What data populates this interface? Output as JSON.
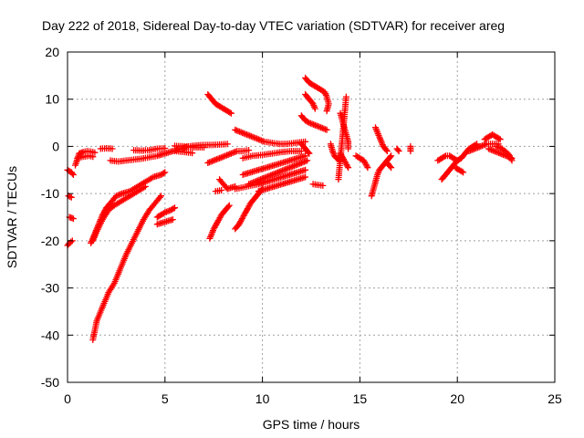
{
  "chart_data": {
    "type": "scatter",
    "title": "Day 222 of 2018, Sidereal Day-to-day VTEC variation (SDTVAR) for receiver areg",
    "xlabel": "GPS time / hours",
    "ylabel": "SDTVAR / TECUs",
    "xlim": [
      0,
      25
    ],
    "ylim": [
      -50,
      20
    ],
    "xticks": [
      0,
      5,
      10,
      15,
      20,
      25
    ],
    "yticks": [
      -50,
      -40,
      -30,
      -20,
      -10,
      0,
      10,
      20
    ],
    "xtick_labels": [
      "0",
      "5",
      "10",
      "15",
      "20",
      "25"
    ],
    "ytick_labels": [
      "-50",
      "-40",
      "-30",
      "-20",
      "-10",
      "0",
      "10",
      "20"
    ],
    "grid": true,
    "marker": "+",
    "color": "#ff0000",
    "tracks": [
      [
        [
          0.0,
          -5.0
        ],
        [
          0.2,
          -5.5
        ],
        [
          0.3,
          -6.0
        ]
      ],
      [
        [
          0.05,
          -10.5
        ],
        [
          0.2,
          -10.8
        ]
      ],
      [
        [
          0.1,
          -15.0
        ],
        [
          0.3,
          -15.3
        ]
      ],
      [
        [
          0.0,
          -21.0
        ],
        [
          0.1,
          -20.5
        ],
        [
          0.25,
          -20.0
        ]
      ],
      [
        [
          0.4,
          -4.0
        ],
        [
          0.6,
          -1.5
        ],
        [
          0.8,
          -1.2
        ],
        [
          1.0,
          -1.0
        ],
        [
          1.2,
          -1.1
        ],
        [
          1.4,
          -1.3
        ]
      ],
      [
        [
          0.5,
          -2.5
        ],
        [
          0.8,
          -2.2
        ],
        [
          1.1,
          -2.0
        ],
        [
          1.3,
          -2.2
        ]
      ],
      [
        [
          1.7,
          -0.5
        ],
        [
          2.0,
          -0.4
        ],
        [
          2.3,
          -0.5
        ]
      ],
      [
        [
          1.2,
          -20.5
        ],
        [
          1.4,
          -18.5
        ],
        [
          1.6,
          -16.5
        ],
        [
          1.8,
          -14.5
        ],
        [
          2.0,
          -13.0
        ],
        [
          2.2,
          -12.0
        ],
        [
          2.5,
          -10.5
        ],
        [
          2.8,
          -10.0
        ],
        [
          3.2,
          -9.5
        ],
        [
          3.6,
          -8.5
        ],
        [
          4.0,
          -7.5
        ],
        [
          4.4,
          -6.5
        ],
        [
          4.8,
          -6.0
        ],
        [
          5.0,
          -5.5
        ]
      ],
      [
        [
          1.3,
          -20.0
        ],
        [
          1.5,
          -18.0
        ],
        [
          1.8,
          -15.5
        ],
        [
          2.1,
          -13.5
        ],
        [
          2.4,
          -12.5
        ],
        [
          2.8,
          -11.5
        ],
        [
          3.2,
          -10.5
        ],
        [
          3.6,
          -9.5
        ],
        [
          4.0,
          -8.5
        ]
      ],
      [
        [
          1.3,
          -41.0
        ],
        [
          1.5,
          -37.0
        ],
        [
          1.8,
          -34.0
        ],
        [
          2.1,
          -31.0
        ],
        [
          2.4,
          -29.0
        ],
        [
          2.7,
          -26.0
        ],
        [
          3.0,
          -23.0
        ],
        [
          3.3,
          -20.5
        ],
        [
          3.6,
          -18.0
        ],
        [
          3.9,
          -15.5
        ],
        [
          4.2,
          -13.5
        ],
        [
          4.5,
          -12.0
        ],
        [
          4.8,
          -10.5
        ]
      ],
      [
        [
          4.6,
          -15.0
        ],
        [
          4.8,
          -14.5
        ],
        [
          5.0,
          -14.0
        ],
        [
          5.3,
          -13.5
        ],
        [
          5.5,
          -13.0
        ]
      ],
      [
        [
          4.6,
          -16.5
        ],
        [
          5.0,
          -16.0
        ],
        [
          5.4,
          -15.5
        ]
      ],
      [
        [
          2.2,
          -3.0
        ],
        [
          2.6,
          -3.2
        ],
        [
          3.0,
          -3.0
        ],
        [
          3.4,
          -2.8
        ],
        [
          3.8,
          -2.6
        ],
        [
          4.2,
          -2.3
        ],
        [
          4.6,
          -2.0
        ],
        [
          5.0,
          -1.5
        ],
        [
          5.4,
          -1.0
        ],
        [
          5.8,
          -0.5
        ],
        [
          6.2,
          0.0
        ],
        [
          6.6,
          0.2
        ],
        [
          7.0,
          0.3
        ],
        [
          7.4,
          0.3
        ],
        [
          7.8,
          0.4
        ],
        [
          8.2,
          0.5
        ]
      ],
      [
        [
          3.4,
          -0.8
        ],
        [
          3.8,
          -0.9
        ],
        [
          4.2,
          -0.8
        ],
        [
          4.6,
          -0.5
        ],
        [
          5.0,
          -0.4
        ]
      ],
      [
        [
          5.5,
          0.1
        ],
        [
          6.0,
          0.0
        ],
        [
          6.5,
          -0.2
        ],
        [
          7.0,
          -0.2
        ]
      ],
      [
        [
          5.5,
          -1.0
        ],
        [
          6.0,
          -1.2
        ],
        [
          6.4,
          -1.4
        ]
      ],
      [
        [
          7.2,
          11.0
        ],
        [
          7.4,
          10.0
        ],
        [
          7.6,
          9.0
        ],
        [
          7.8,
          8.5
        ],
        [
          8.0,
          8.0
        ],
        [
          8.2,
          7.5
        ],
        [
          8.4,
          7.0
        ]
      ],
      [
        [
          7.3,
          -19.5
        ],
        [
          7.5,
          -17.5
        ],
        [
          7.7,
          -16.0
        ],
        [
          7.9,
          -14.5
        ],
        [
          8.1,
          -13.5
        ],
        [
          8.3,
          -12.5
        ]
      ],
      [
        [
          8.6,
          -17.5
        ],
        [
          8.8,
          -16.5
        ],
        [
          9.0,
          -15.0
        ],
        [
          9.2,
          -13.5
        ],
        [
          9.4,
          -12.0
        ],
        [
          9.6,
          -11.0
        ],
        [
          9.8,
          -10.0
        ],
        [
          10.0,
          -9.0
        ]
      ],
      [
        [
          7.2,
          -3.5
        ],
        [
          7.5,
          -3.0
        ],
        [
          7.8,
          -2.5
        ],
        [
          8.1,
          -2.0
        ],
        [
          8.4,
          -1.5
        ],
        [
          8.7,
          -1.0
        ],
        [
          9.0,
          -1.0
        ],
        [
          9.3,
          -0.8
        ]
      ],
      [
        [
          8.6,
          3.5
        ],
        [
          8.9,
          3.0
        ],
        [
          9.2,
          2.5
        ],
        [
          9.5,
          2.0
        ],
        [
          9.8,
          1.5
        ],
        [
          10.1,
          1.0
        ],
        [
          10.4,
          0.8
        ],
        [
          10.7,
          0.6
        ],
        [
          11.0,
          0.5
        ],
        [
          11.4,
          0.6
        ],
        [
          11.8,
          0.8
        ],
        [
          12.2,
          1.0
        ]
      ],
      [
        [
          9.0,
          -2.5
        ],
        [
          9.5,
          -2.0
        ],
        [
          10.0,
          -1.8
        ],
        [
          10.5,
          -1.5
        ],
        [
          11.0,
          -1.2
        ],
        [
          11.5,
          -1.0
        ],
        [
          12.0,
          -1.0
        ]
      ],
      [
        [
          9.0,
          -6.0
        ],
        [
          9.4,
          -5.5
        ],
        [
          9.8,
          -5.0
        ],
        [
          10.2,
          -4.5
        ],
        [
          10.6,
          -4.0
        ],
        [
          11.0,
          -3.5
        ],
        [
          11.4,
          -3.0
        ],
        [
          11.8,
          -2.5
        ],
        [
          12.2,
          -2.0
        ]
      ],
      [
        [
          9.3,
          -8.0
        ],
        [
          9.6,
          -7.5
        ],
        [
          9.9,
          -7.0
        ],
        [
          10.2,
          -6.5
        ],
        [
          10.5,
          -6.0
        ],
        [
          10.8,
          -5.5
        ],
        [
          11.1,
          -5.0
        ],
        [
          11.4,
          -4.5
        ],
        [
          11.7,
          -4.0
        ],
        [
          12.0,
          -3.5
        ],
        [
          12.3,
          -3.0
        ]
      ],
      [
        [
          8.6,
          -9.0
        ],
        [
          9.0,
          -8.7
        ],
        [
          9.4,
          -8.3
        ],
        [
          9.8,
          -8.0
        ],
        [
          10.2,
          -7.5
        ],
        [
          10.6,
          -7.0
        ],
        [
          11.0,
          -6.5
        ],
        [
          11.4,
          -6.0
        ],
        [
          11.8,
          -5.5
        ],
        [
          12.2,
          -5.0
        ]
      ],
      [
        [
          7.8,
          -7.0
        ],
        [
          8.2,
          -9.0
        ],
        [
          8.6,
          -8.5
        ]
      ],
      [
        [
          7.6,
          -9.5
        ],
        [
          7.9,
          -9.3
        ]
      ],
      [
        [
          9.8,
          -9.5
        ],
        [
          10.2,
          -9.0
        ],
        [
          10.6,
          -8.5
        ],
        [
          11.0,
          -8.0
        ],
        [
          11.4,
          -7.5
        ],
        [
          11.8,
          -7.0
        ],
        [
          12.2,
          -6.5
        ]
      ],
      [
        [
          12.2,
          14.5
        ],
        [
          12.4,
          13.5
        ],
        [
          12.6,
          13.0
        ],
        [
          12.8,
          12.5
        ],
        [
          13.0,
          12.0
        ],
        [
          13.2,
          11.5
        ],
        [
          13.3,
          10.5
        ],
        [
          13.4,
          9.0
        ],
        [
          13.3,
          7.5
        ]
      ],
      [
        [
          12.2,
          11.0
        ],
        [
          12.4,
          10.0
        ],
        [
          12.6,
          9.0
        ],
        [
          12.7,
          8.0
        ]
      ],
      [
        [
          12.0,
          6.5
        ],
        [
          12.2,
          5.5
        ],
        [
          12.4,
          5.0
        ],
        [
          12.7,
          4.5
        ],
        [
          13.0,
          4.0
        ],
        [
          13.3,
          3.5
        ]
      ],
      [
        [
          12.0,
          0.5
        ],
        [
          12.2,
          -0.5
        ],
        [
          12.4,
          -1.5
        ]
      ],
      [
        [
          12.6,
          -8.0
        ],
        [
          12.9,
          -8.2
        ],
        [
          13.1,
          -8.3
        ]
      ],
      [
        [
          13.5,
          0.5
        ],
        [
          13.6,
          -1.0
        ],
        [
          13.7,
          -2.0
        ],
        [
          13.8,
          -2.5
        ],
        [
          14.0,
          -3.0
        ]
      ],
      [
        [
          14.0,
          7.0
        ],
        [
          14.1,
          5.5
        ],
        [
          14.2,
          4.0
        ],
        [
          14.3,
          2.5
        ],
        [
          14.4,
          1.0
        ],
        [
          14.4,
          -0.5
        ]
      ],
      [
        [
          14.0,
          -1.5
        ],
        [
          14.2,
          -3.0
        ],
        [
          14.4,
          -4.5
        ]
      ],
      [
        [
          14.3,
          10.5
        ],
        [
          13.9,
          -7.0
        ]
      ],
      [
        [
          14.8,
          -2.0
        ],
        [
          15.0,
          -2.5
        ],
        [
          15.2,
          -3.0
        ],
        [
          15.4,
          -4.5
        ]
      ],
      [
        [
          15.8,
          4.0
        ],
        [
          15.9,
          3.0
        ],
        [
          16.0,
          2.0
        ],
        [
          16.1,
          1.0
        ],
        [
          16.2,
          0.0
        ],
        [
          16.4,
          -1.0
        ]
      ],
      [
        [
          15.6,
          -10.5
        ],
        [
          15.7,
          -9.0
        ],
        [
          15.8,
          -7.5
        ],
        [
          15.9,
          -6.0
        ],
        [
          16.0,
          -5.0
        ],
        [
          16.2,
          -4.0
        ],
        [
          16.4,
          -3.0
        ],
        [
          16.6,
          -2.0
        ]
      ],
      [
        [
          16.9,
          -0.5
        ],
        [
          17.0,
          -1.0
        ]
      ],
      [
        [
          16.4,
          -3.5
        ],
        [
          16.6,
          -4.5
        ]
      ],
      [
        [
          17.6,
          0.0
        ],
        [
          17.6,
          -1.0
        ]
      ],
      [
        [
          19.0,
          -3.0
        ],
        [
          19.2,
          -2.5
        ],
        [
          19.4,
          -2.0
        ],
        [
          19.6,
          -2.0
        ],
        [
          19.8,
          -2.5
        ],
        [
          20.0,
          -3.0
        ]
      ],
      [
        [
          19.2,
          -7.0
        ],
        [
          19.4,
          -6.0
        ],
        [
          19.6,
          -5.0
        ],
        [
          19.8,
          -4.0
        ],
        [
          20.0,
          -3.0
        ],
        [
          20.2,
          -2.5
        ],
        [
          20.4,
          -1.5
        ],
        [
          20.6,
          -0.5
        ],
        [
          20.8,
          0.0
        ],
        [
          21.0,
          0.5
        ]
      ],
      [
        [
          19.9,
          -4.5
        ],
        [
          20.1,
          -5.0
        ],
        [
          20.3,
          -5.5
        ]
      ],
      [
        [
          20.6,
          -1.0
        ],
        [
          20.9,
          -0.5
        ],
        [
          21.2,
          0.0
        ],
        [
          21.5,
          0.5
        ],
        [
          21.8,
          0.5
        ],
        [
          22.1,
          0.5
        ]
      ],
      [
        [
          21.4,
          1.5
        ],
        [
          21.6,
          2.0
        ],
        [
          21.8,
          2.5
        ],
        [
          22.0,
          2.0
        ],
        [
          22.2,
          1.5
        ]
      ],
      [
        [
          21.6,
          -0.5
        ],
        [
          21.9,
          -1.0
        ],
        [
          22.2,
          -1.5
        ],
        [
          22.5,
          -2.0
        ],
        [
          22.8,
          -2.5
        ]
      ],
      [
        [
          22.0,
          0.0
        ],
        [
          22.3,
          -0.5
        ],
        [
          22.6,
          -1.5
        ],
        [
          22.8,
          -3.0
        ]
      ]
    ]
  }
}
